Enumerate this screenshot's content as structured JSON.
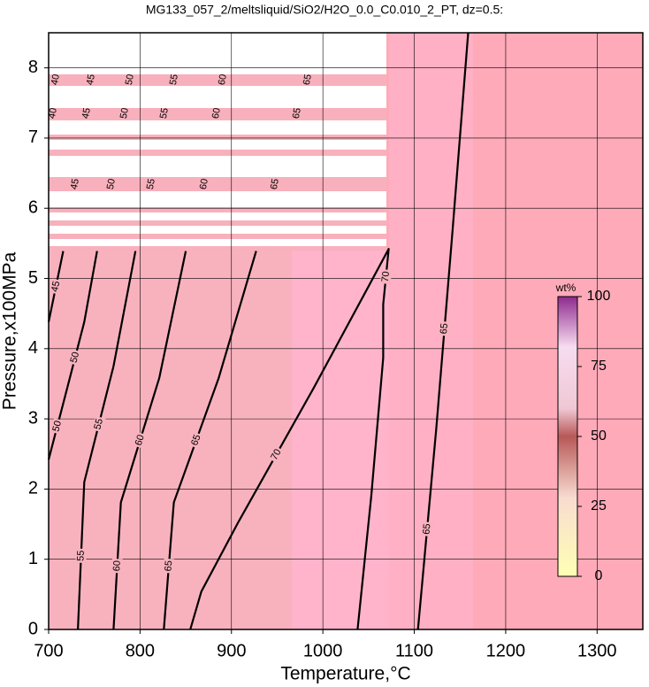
{
  "chart_data": {
    "type": "contour",
    "title": "MG133_057_2/meltsliquid/SiO2/H2O_0.0_C0.010_2_PT, dz=0.5:",
    "xlabel": "Temperature,°C",
    "ylabel": "Pressure,x100MPa",
    "xlim": [
      700,
      1350
    ],
    "ylim": [
      0,
      8.5
    ],
    "xticks": [
      700,
      800,
      900,
      1000,
      1100,
      1200,
      1300
    ],
    "yticks": [
      0,
      1,
      2,
      3,
      4,
      5,
      6,
      7,
      8
    ],
    "grid": true,
    "line_color": "#000000",
    "levels": [
      40,
      45,
      50,
      55,
      60,
      65,
      70
    ],
    "contours": [
      {
        "level": 45,
        "x": [
          700,
          716
        ],
        "y": [
          4.38,
          5.39
        ]
      },
      {
        "level": 50,
        "x": [
          700,
          719,
          739,
          753
        ],
        "y": [
          2.42,
          3.37,
          4.38,
          5.39
        ]
      },
      {
        "level": 55,
        "x": [
          732,
          739,
          771,
          795
        ],
        "y": [
          0,
          2.1,
          3.75,
          5.39
        ]
      },
      {
        "level": 60,
        "x": [
          771,
          779,
          821,
          850
        ],
        "y": [
          0,
          1.81,
          3.58,
          5.39
        ]
      },
      {
        "level": 65,
        "x": [
          826,
          837,
          886,
          927
        ],
        "y": [
          0,
          1.81,
          3.58,
          5.39
        ]
      },
      {
        "level": 70,
        "x": [
          855,
          867,
          908,
          990,
          1048,
          1072,
          1066,
          1066,
          1053,
          1038
        ],
        "y": [
          0,
          0.54,
          1.54,
          3.44,
          4.84,
          5.42,
          4.63,
          3.87,
          1.9,
          0
        ]
      },
      {
        "level": 65,
        "x": [
          1104,
          1124,
          1142,
          1159
        ],
        "y": [
          0,
          2.86,
          5.71,
          8.5
        ]
      }
    ],
    "colorbar": {
      "label": "wt%",
      "lim": [
        0,
        100
      ],
      "ticks": [
        0,
        25,
        50,
        75,
        100
      ]
    }
  }
}
